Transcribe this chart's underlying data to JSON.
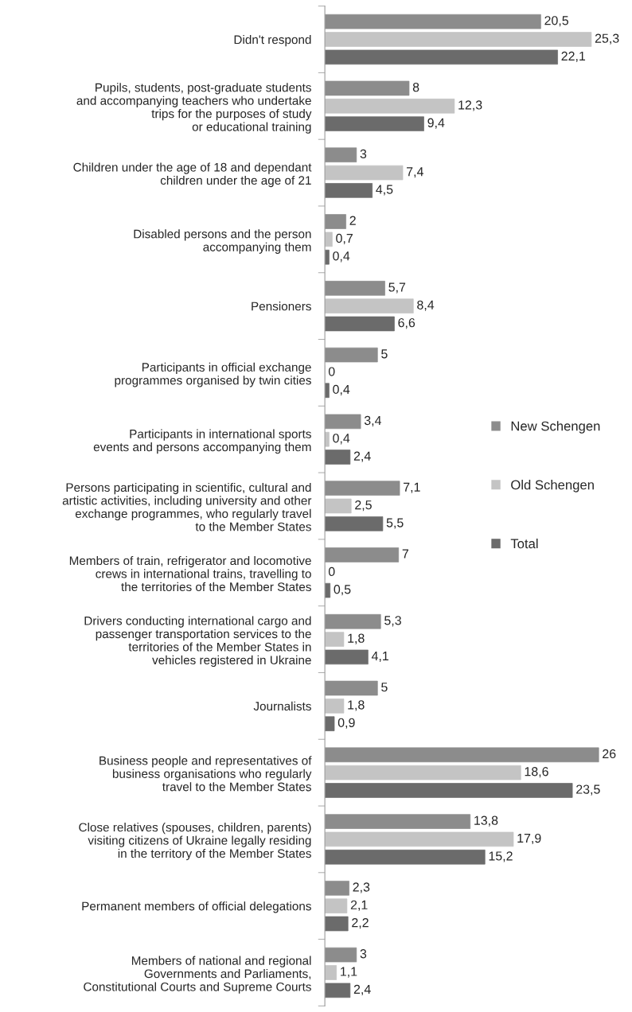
{
  "chart_data": {
    "type": "bar",
    "orientation": "horizontal",
    "legend": "right",
    "grid": false,
    "categories": [
      "Didn't respond",
      "Pupils, students, post-graduate students\nand accompanying teachers who undertake\ntrips for the purposes of study\nor educational training",
      "Children under the age of 18 and dependant\nchildren under the age of 21",
      "Disabled persons and the person\naccompanying them",
      "Pensioners",
      "Participants in official exchange\nprogrammes organised by twin cities",
      "Participants in international sports\nevents and persons accompanying them",
      "Persons participating in scientific, cultural and\nartistic activities, including university and other\nexchange programmes, who regularly travel\nto the Member States",
      "Members of train, refrigerator and locomotive\ncrews in international trains, travelling to\nthe territories of the Member States",
      "Drivers conducting international cargo and\npassenger transportation services to the\nterritories of the Member States in\nvehicles registered in Ukraine",
      "Journalists",
      "Business people and representatives of\nbusiness organisations who regularly\ntravel to the Member States",
      "Close relatives (spouses, children, parents)\nvisiting citizens of Ukraine legally residing\nin the territory of the Member States",
      "Permanent members of official delegations",
      "Members of national and regional\nGovernments and Parliaments,\nConstitutional Courts and Supreme Courts"
    ],
    "series": [
      {
        "name": "New Schengen",
        "color": "#8c8c8c",
        "values": [
          20.5,
          8,
          3,
          2,
          5.7,
          5,
          3.4,
          7.1,
          7,
          5.3,
          5,
          26,
          13.8,
          2.3,
          3
        ],
        "value_labels": [
          "20,5",
          "8",
          "3",
          "2",
          "5,7",
          "5",
          "3,4",
          "7,1",
          "7",
          "5,3",
          "5",
          "26",
          "13,8",
          "2,3",
          "3"
        ]
      },
      {
        "name": "Old Schengen",
        "color": "#c4c4c4",
        "values": [
          25.3,
          12.3,
          7.4,
          0.7,
          8.4,
          0,
          0.4,
          2.5,
          0,
          1.8,
          1.8,
          18.6,
          17.9,
          2.1,
          1.1
        ],
        "value_labels": [
          "25,3",
          "12,3",
          "7,4",
          "0,7",
          "8,4",
          "0",
          "0,4",
          "2,5",
          "0",
          "1,8",
          "1,8",
          "18,6",
          "17,9",
          "2,1",
          "1,1"
        ]
      },
      {
        "name": "Total",
        "color": "#6b6b6b",
        "values": [
          22.1,
          9.4,
          4.5,
          0.4,
          6.6,
          0.4,
          2.4,
          5.5,
          0.5,
          4.1,
          0.9,
          23.5,
          15.2,
          2.2,
          2.4
        ],
        "value_labels": [
          "22,1",
          "9,4",
          "4,5",
          "0,4",
          "6,6",
          "0,4",
          "2,4",
          "5,5",
          "0,5",
          "4,1",
          "0,9",
          "23,5",
          "15,2",
          "2,2",
          "2,4"
        ]
      }
    ]
  }
}
